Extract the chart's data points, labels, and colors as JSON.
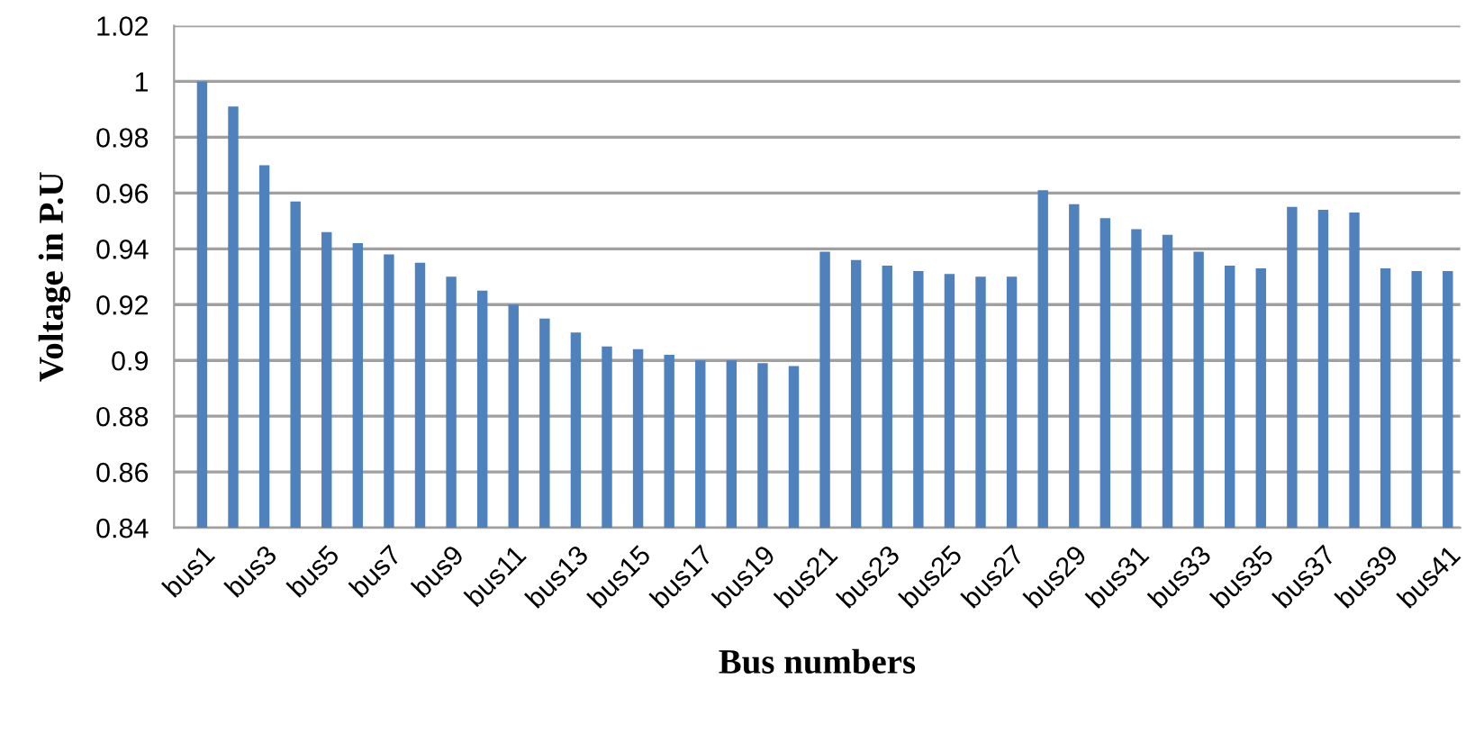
{
  "chart_data": {
    "type": "bar",
    "xlabel": "Bus numbers",
    "ylabel": "Voltage in P.U",
    "categories": [
      "bus1",
      null,
      "bus3",
      null,
      "bus5",
      null,
      "bus7",
      null,
      "bus9",
      null,
      "bus11",
      null,
      "bus13",
      null,
      "bus15",
      null,
      "bus17",
      null,
      "bus19",
      null,
      "bus21",
      null,
      "bus23",
      null,
      "bus25",
      null,
      "bus27",
      null,
      "bus29",
      null,
      "bus31",
      null,
      "bus33",
      null,
      "bus35",
      null,
      "bus37",
      null,
      "bus39",
      null,
      "bus41"
    ],
    "values": [
      1.0,
      0.991,
      0.97,
      0.957,
      0.946,
      0.942,
      0.938,
      0.935,
      0.93,
      0.925,
      0.92,
      0.915,
      0.91,
      0.905,
      0.904,
      0.902,
      0.9,
      0.9,
      0.899,
      0.898,
      0.939,
      0.936,
      0.934,
      0.932,
      0.931,
      0.93,
      0.93,
      0.961,
      0.956,
      0.951,
      0.947,
      0.945,
      0.939,
      0.934,
      0.933,
      0.955,
      0.954,
      0.953,
      0.933,
      0.932,
      0.932
    ],
    "color": "#4f81bd",
    "ylim": [
      0.84,
      1.02
    ],
    "yticks": [
      0.84,
      0.86,
      0.88,
      0.9,
      0.92,
      0.94,
      0.96,
      0.98,
      1,
      1.02
    ],
    "grid": "y",
    "legend": false
  }
}
